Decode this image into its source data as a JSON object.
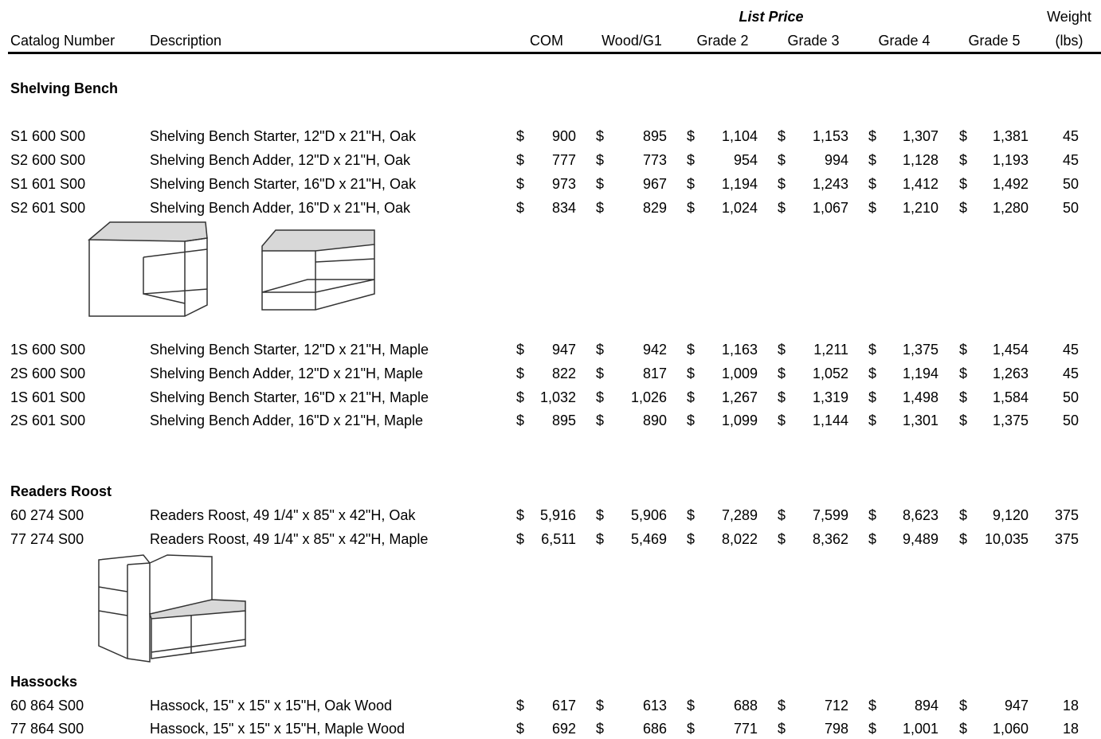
{
  "currency": "$",
  "header": {
    "list_price": "List Price",
    "catalog": "Catalog Number",
    "description": "Description",
    "price_columns": [
      "COM",
      "Wood/G1",
      "Grade 2",
      "Grade 3",
      "Grade 4",
      "Grade 5"
    ],
    "weight": "Weight",
    "weight_unit": "(lbs)"
  },
  "sections": [
    {
      "title": "Shelving Bench",
      "rows": [
        {
          "catalog": "S1 600 S00",
          "description": "Shelving Bench Starter, 12\"D x 21\"H, Oak",
          "prices": [
            "900",
            "895",
            "1,104",
            "1,153",
            "1,307",
            "1,381"
          ],
          "weight": 45
        },
        {
          "catalog": "S2 600 S00",
          "description": "Shelving Bench Adder, 12\"D x 21\"H, Oak",
          "prices": [
            "777",
            "773",
            "954",
            "994",
            "1,128",
            "1,193"
          ],
          "weight": 45
        },
        {
          "catalog": "S1 601 S00",
          "description": "Shelving Bench Starter, 16\"D x 21\"H, Oak",
          "prices": [
            "973",
            "967",
            "1,194",
            "1,243",
            "1,412",
            "1,492"
          ],
          "weight": 50
        },
        {
          "catalog": "S2 601 S00",
          "description": "Shelving Bench Adder, 16\"D x 21\"H, Oak",
          "prices": [
            "834",
            "829",
            "1,024",
            "1,067",
            "1,210",
            "1,280"
          ],
          "weight": 50
        },
        {
          "catalog": "1S 600 S00",
          "description": "Shelving Bench Starter, 12\"D x 21\"H, Maple",
          "prices": [
            "947",
            "942",
            "1,163",
            "1,211",
            "1,375",
            "1,454"
          ],
          "weight": 45
        },
        {
          "catalog": "2S 600 S00",
          "description": "Shelving Bench Adder, 12\"D x 21\"H, Maple",
          "prices": [
            "822",
            "817",
            "1,009",
            "1,052",
            "1,194",
            "1,263"
          ],
          "weight": 45
        },
        {
          "catalog": "1S 601 S00",
          "description": "Shelving Bench Starter, 16\"D x 21\"H, Maple",
          "prices": [
            "1,032",
            "1,026",
            "1,267",
            "1,319",
            "1,498",
            "1,584"
          ],
          "weight": 50
        },
        {
          "catalog": "2S 601 S00",
          "description": "Shelving Bench Adder, 16\"D x 21\"H, Maple",
          "prices": [
            "895",
            "890",
            "1,099",
            "1,144",
            "1,301",
            "1,375"
          ],
          "weight": 50
        }
      ]
    },
    {
      "title": "Readers Roost",
      "rows": [
        {
          "catalog": "60 274 S00",
          "description": "Readers Roost, 49 1/4\" x 85\" x 42\"H, Oak",
          "prices": [
            "5,916",
            "5,906",
            "7,289",
            "7,599",
            "8,623",
            "9,120"
          ],
          "weight": 375
        },
        {
          "catalog": "77 274 S00",
          "description": "Readers Roost, 49 1/4\" x 85\" x 42\"H, Maple",
          "prices": [
            "6,511",
            "5,469",
            "8,022",
            "8,362",
            "9,489",
            "10,035"
          ],
          "weight": 375
        }
      ]
    },
    {
      "title": "Hassocks",
      "rows": [
        {
          "catalog": "60 864 S00",
          "description": "Hassock, 15\" x 15\" x 15\"H, Oak Wood",
          "prices": [
            "617",
            "613",
            "688",
            "712",
            "894",
            "947"
          ],
          "weight": 18
        },
        {
          "catalog": "77 864 S00",
          "description": "Hassock, 15\" x 15\" x 15\"H, Maple Wood",
          "prices": [
            "692",
            "686",
            "771",
            "798",
            "1,001",
            "1,060"
          ],
          "weight": 18
        }
      ]
    }
  ]
}
